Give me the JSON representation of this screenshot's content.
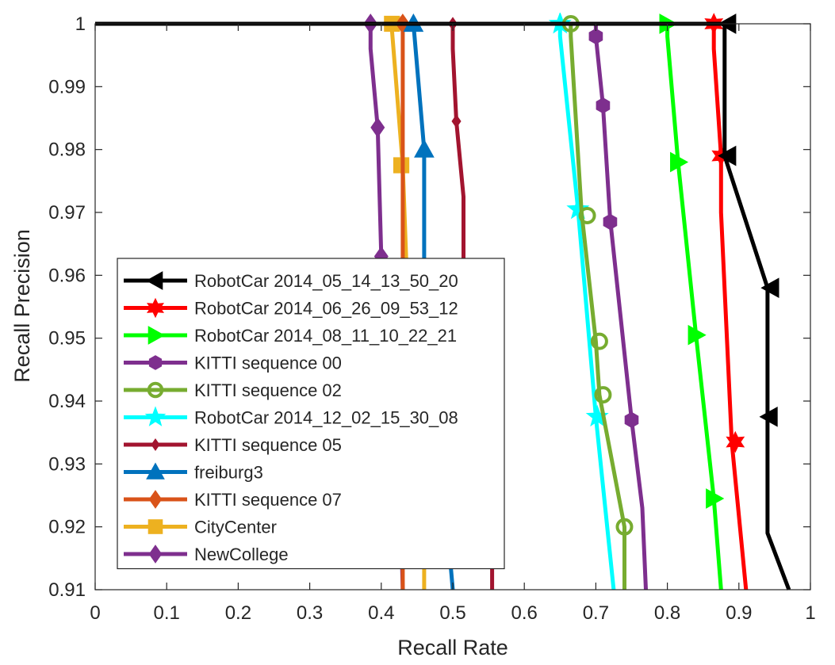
{
  "chart_data": {
    "type": "line",
    "title": "",
    "xlabel": "Recall Rate",
    "ylabel": "Recall Precision",
    "xlim": [
      0,
      1
    ],
    "ylim": [
      0.91,
      1
    ],
    "xticks": [
      "0",
      "0.1",
      "0.2",
      "0.3",
      "0.4",
      "0.5",
      "0.6",
      "0.7",
      "0.8",
      "0.9",
      "1"
    ],
    "yticks": [
      "0.91",
      "0.92",
      "0.93",
      "0.94",
      "0.95",
      "0.96",
      "0.97",
      "0.98",
      "0.99",
      "1"
    ],
    "grid": false,
    "legend_position": "bottom-left",
    "series": [
      {
        "name": "RobotCar 2014_05_14_13_50_20",
        "color": "#000000",
        "marker": "triangle-left",
        "x": [
          0,
          0.88,
          0.88,
          0.94,
          0.94,
          0.94,
          0.97
        ],
        "y": [
          1,
          1,
          0.979,
          0.958,
          0.9375,
          0.919,
          0.91
        ],
        "markers": [
          [
            0.885,
            1
          ],
          [
            0.885,
            0.979
          ],
          [
            0.945,
            0.958
          ],
          [
            0.943,
            0.9375
          ]
        ]
      },
      {
        "name": "RobotCar 2014_06_26_09_53_12",
        "color": "#ff0000",
        "marker": "hexagram",
        "x": [
          0,
          0.865,
          0.865,
          0.875,
          0.875,
          0.89,
          0.91
        ],
        "y": [
          1,
          1,
          0.996,
          0.979,
          0.97,
          0.9335,
          0.91
        ],
        "markers": [
          [
            0.865,
            1
          ],
          [
            0.875,
            0.979
          ],
          [
            0.895,
            0.9335
          ]
        ]
      },
      {
        "name": "RobotCar 2014_08_11_10_22_21",
        "color": "#00ff00",
        "marker": "triangle-right",
        "x": [
          0,
          0.8,
          0.8,
          0.815,
          0.84,
          0.865,
          0.875
        ],
        "y": [
          1,
          1,
          0.998,
          0.978,
          0.9505,
          0.9245,
          0.91
        ],
        "markers": [
          [
            0.8,
            1
          ],
          [
            0.815,
            0.978
          ],
          [
            0.84,
            0.9505
          ],
          [
            0.865,
            0.9245
          ]
        ]
      },
      {
        "name": "KITTI sequence 00",
        "color": "#7e2f8e",
        "marker": "hexagon",
        "x": [
          0,
          0.7,
          0.7,
          0.71,
          0.72,
          0.75,
          0.765,
          0.77
        ],
        "y": [
          1,
          1,
          0.998,
          0.987,
          0.969,
          0.937,
          0.923,
          0.91
        ],
        "markers": [
          [
            0.7,
            0.998
          ],
          [
            0.71,
            0.987
          ],
          [
            0.72,
            0.9685
          ],
          [
            0.75,
            0.937
          ]
        ]
      },
      {
        "name": "KITTI sequence 02",
        "color": "#77ac30",
        "marker": "circle",
        "x": [
          0,
          0.665,
          0.665,
          0.68,
          0.7,
          0.705,
          0.74,
          0.74
        ],
        "y": [
          1,
          1,
          0.998,
          0.97,
          0.9495,
          0.941,
          0.92,
          0.91
        ],
        "markers": [
          [
            0.665,
            1
          ],
          [
            0.688,
            0.9695
          ],
          [
            0.705,
            0.9495
          ],
          [
            0.71,
            0.941
          ],
          [
            0.74,
            0.92
          ]
        ]
      },
      {
        "name": "RobotCar 2014_12_02_15_30_08",
        "color": "#00ffff",
        "marker": "pentagram",
        "x": [
          0,
          0.65,
          0.65,
          0.675,
          0.7,
          0.725
        ],
        "y": [
          1,
          1,
          0.998,
          0.9705,
          0.9375,
          0.91
        ],
        "markers": [
          [
            0.65,
            1
          ],
          [
            0.675,
            0.9705
          ],
          [
            0.702,
            0.9375
          ]
        ]
      },
      {
        "name": "KITTI sequence 05",
        "color": "#a2142f",
        "marker": "x-diamond",
        "x": [
          0,
          0.5,
          0.5,
          0.505,
          0.515,
          0.515,
          0.555,
          0.555
        ],
        "y": [
          1,
          1,
          0.996,
          0.9845,
          0.9725,
          0.961,
          0.953,
          0.91
        ],
        "markers": [
          [
            0.5,
            1
          ],
          [
            0.505,
            0.9845
          ]
        ]
      },
      {
        "name": "freiburg3",
        "color": "#0072bd",
        "marker": "triangle-up",
        "x": [
          0,
          0.445,
          0.46,
          0.46,
          0.5
        ],
        "y": [
          1,
          1,
          0.98,
          0.962,
          0.91
        ],
        "markers": [
          [
            0.445,
            1
          ],
          [
            0.46,
            0.98
          ]
        ]
      },
      {
        "name": "KITTI sequence 07",
        "color": "#d95319",
        "marker": "diamond",
        "x": [
          0,
          0.43,
          0.43,
          0.43
        ],
        "y": [
          1,
          1,
          0.99,
          0.91
        ],
        "markers": [
          [
            0.43,
            1
          ]
        ]
      },
      {
        "name": "CityCenter",
        "color": "#edb120",
        "marker": "square",
        "x": [
          0,
          0.415,
          0.415,
          0.43,
          0.435,
          0.46,
          0.46
        ],
        "y": [
          1,
          1,
          0.999,
          0.9775,
          0.962,
          0.953,
          0.91
        ],
        "markers": [
          [
            0.415,
            1
          ],
          [
            0.428,
            0.9775
          ]
        ]
      },
      {
        "name": "NewCollege",
        "color": "#7e2f8e",
        "marker": "diamond",
        "x": [
          0,
          0.385,
          0.385,
          0.395,
          0.4,
          0.42,
          0.43
        ],
        "y": [
          1,
          1,
          0.996,
          0.9835,
          0.963,
          0.953,
          0.91
        ],
        "markers": [
          [
            0.385,
            1
          ],
          [
            0.395,
            0.9835
          ],
          [
            0.4,
            0.963
          ]
        ]
      }
    ]
  }
}
